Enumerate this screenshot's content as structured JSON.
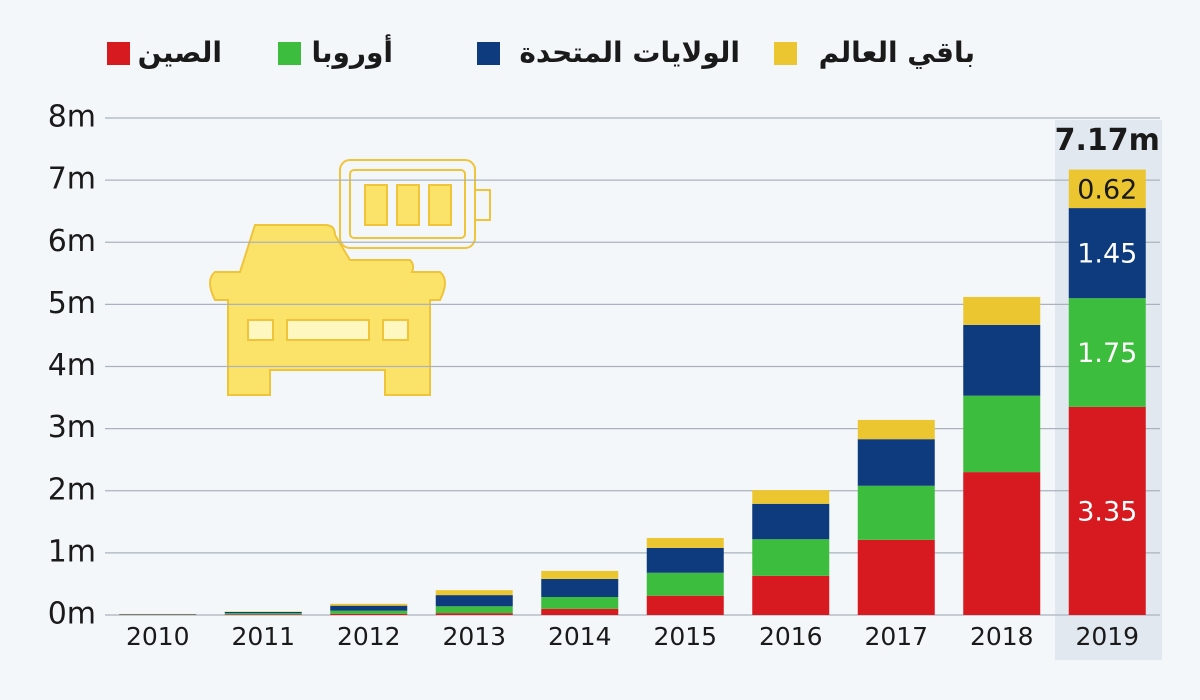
{
  "chart_data": {
    "type": "stacked_bar",
    "categories": [
      "2010",
      "2011",
      "2012",
      "2013",
      "2014",
      "2015",
      "2016",
      "2017",
      "2018",
      "2019"
    ],
    "series": [
      {
        "name": "الصين",
        "color": "#d71920",
        "values": [
          0.005,
          0.01,
          0.02,
          0.03,
          0.1,
          0.31,
          0.63,
          1.21,
          2.3,
          3.35
        ]
      },
      {
        "name": "أوروبا",
        "color": "#3dbd3d",
        "values": [
          0.005,
          0.02,
          0.05,
          0.11,
          0.19,
          0.37,
          0.59,
          0.87,
          1.23,
          1.75
        ]
      },
      {
        "name": "الولايات المتحدة",
        "color": "#0e3a7e",
        "values": [
          0.005,
          0.02,
          0.08,
          0.18,
          0.29,
          0.4,
          0.57,
          0.75,
          1.14,
          1.45
        ]
      },
      {
        "name": "باقي العالم",
        "color": "#ecc631",
        "values": [
          0.002,
          0.005,
          0.03,
          0.08,
          0.13,
          0.16,
          0.22,
          0.31,
          0.45,
          0.62
        ]
      }
    ],
    "total_label": "7.17m",
    "ylim": [
      0,
      8
    ],
    "yticks": [
      {
        "value": 0,
        "label": "0m"
      },
      {
        "value": 1,
        "label": "1m"
      },
      {
        "value": 2,
        "label": "2m"
      },
      {
        "value": 3,
        "label": "3m"
      },
      {
        "value": 4,
        "label": "4m"
      },
      {
        "value": 5,
        "label": "5m"
      },
      {
        "value": 6,
        "label": "6m"
      },
      {
        "value": 7,
        "label": "7m"
      },
      {
        "value": 8,
        "label": "8m"
      }
    ],
    "grid": true
  }
}
